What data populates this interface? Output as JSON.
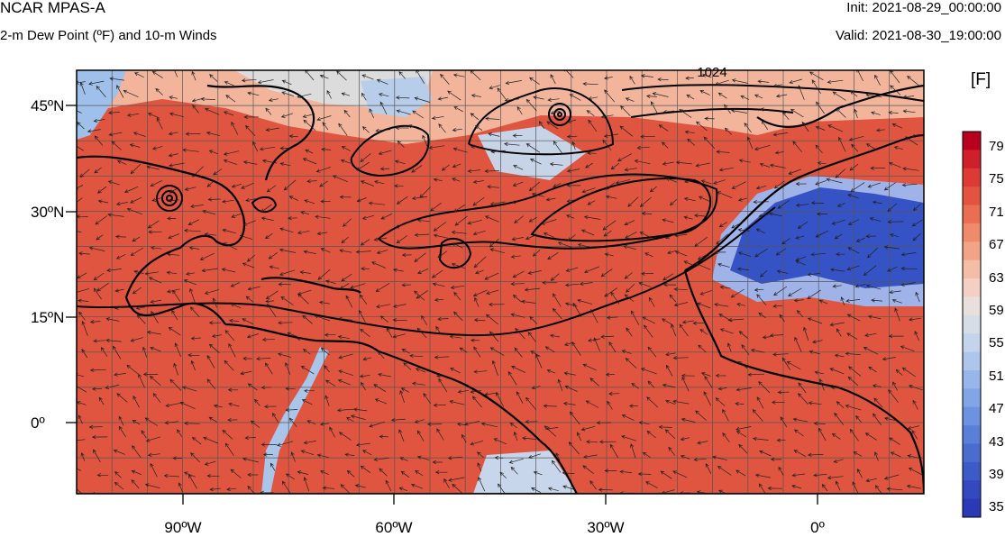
{
  "header": {
    "title": "NCAR MPAS-A",
    "subtitle": "2-m Dew Point (ºF) and 10-m Winds",
    "init": "Init: 2021-08-29_00:00:00",
    "valid": "Valid: 2021-08-30_19:00:00"
  },
  "map": {
    "lat_labels": [
      "45ºN",
      "30ºN",
      "15ºN",
      "0º"
    ],
    "lon_labels": [
      "90ºW",
      "60ºW",
      "30ºW",
      "0º"
    ],
    "contour_label": "1024",
    "colors": {
      "high": "#e0553f",
      "mid": "#f2b59c",
      "neutral": "#dcdcdc",
      "cool": "#9fc0ea",
      "low": "#3553c4"
    }
  },
  "colorbar": {
    "unit": "[F]",
    "labels": [
      "79",
      "75",
      "71",
      "67",
      "63",
      "59",
      "55",
      "51",
      "47",
      "43",
      "39",
      "35"
    ],
    "colors": [
      "#b8001f",
      "#cf1f2a",
      "#dd3a35",
      "#e4533f",
      "#ea6e52",
      "#ef8a6a",
      "#f3a487",
      "#f5bca6",
      "#f3d0c3",
      "#e8e0dc",
      "#d6dde6",
      "#c4d4ea",
      "#afc6ec",
      "#98b6ea",
      "#82a5e6",
      "#6d92df",
      "#5a7fd8",
      "#4a6ccf",
      "#3d5bc7",
      "#3349bf",
      "#2a3ab7"
    ]
  }
}
